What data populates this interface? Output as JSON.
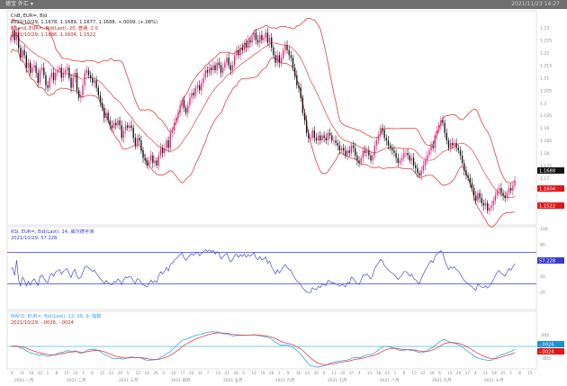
{
  "window": {
    "title": "德宝 外汇 ▾",
    "timestamp": "2021/11/23 14:27"
  },
  "colors": {
    "up": "#e0247b",
    "down": "#111111",
    "band": "#e04040",
    "rsi": "#4a4ad0",
    "macd": "#3aa0e8",
    "signal": "#e04040",
    "guide": "#3a3aff",
    "macd_guide": "#40c0e0"
  },
  "price_panel": {
    "header": "CnB, EUR=, Bid",
    "ohlc": "2021/10/29, 1.1678, 1.1689, 1.1677, 1.1688, +.0009, (+.08%)",
    "bb_label": "BBand, EUR=, Bid(Last), 20, 普通, 2.0",
    "bb_values": "2021/10/29, 1.1686, 1.1604, 1.1522",
    "price_tag": "1.1688",
    "band_tag_upper": "1.1604",
    "band_tag_lower": "1.1522",
    "y_ticks": [
      "1.23",
      "1.225",
      "1.22",
      "1.215",
      "1.21",
      "1.205",
      "1.2",
      "1.195",
      "1.19",
      "1.185",
      "1.18",
      "1.175",
      "1.17",
      "1.165",
      "1.16"
    ]
  },
  "rsi_panel": {
    "label": "RSI, EUR=, Bid(Last), 14, 威尔德平滑",
    "value_line": "2021/10/29, 57.228",
    "y_ticks": [
      "100",
      "80",
      "60",
      "40",
      "20"
    ],
    "value_tag": "57.228"
  },
  "macd_panel": {
    "label": "MACD, EUR=, Bid(Last), 12, 26, 9, 指数",
    "value_line": "2021/10/29, -.0026, -.0024",
    "y_ticks": [
      ".005",
      "0",
      "-.005"
    ],
    "tag_macd": "-.0026",
    "tag_signal": "-.0024"
  },
  "x_axis": {
    "day_ticks": [
      "4",
      "11",
      "18",
      "25",
      "1",
      "8",
      "15",
      "22",
      "1",
      "8",
      "15",
      "22",
      "29",
      "5",
      "12",
      "19",
      "26",
      "3",
      "10",
      "17",
      "24",
      "31",
      "7",
      "14",
      "21",
      "28",
      "5",
      "12",
      "19",
      "26",
      "2",
      "9",
      "16",
      "23",
      "30",
      "6",
      "13",
      "20",
      "27",
      "4",
      "11",
      "18",
      "25",
      "1",
      "8",
      "15",
      "22",
      "29",
      "6",
      "13",
      "20",
      "27",
      "4",
      "11",
      "18",
      "25",
      "1",
      "8",
      "15"
    ],
    "months": [
      "2021 一月",
      "2021 二月",
      "2021 三月",
      "2021 四月",
      "2021 五月",
      "2021 六月",
      "2021 七月",
      "2021 八月",
      "2021 九月",
      "2021 十月"
    ]
  },
  "chart_data": {
    "type": "candlestick",
    "period": "weekly-like daily candles, Jan–Oct 2021",
    "price_range": [
      1.152,
      1.236
    ],
    "close": [
      1.226,
      1.229,
      1.225,
      1.228,
      1.222,
      1.218,
      1.221,
      1.219,
      1.214,
      1.216,
      1.212,
      1.214,
      1.215,
      1.212,
      1.208,
      1.213,
      1.214,
      1.211,
      1.207,
      1.206,
      1.21,
      1.212,
      1.209,
      1.212,
      1.213,
      1.214,
      1.21,
      1.212,
      1.213,
      1.214,
      1.21,
      1.206,
      1.21,
      1.212,
      1.205,
      1.202,
      1.203,
      1.207,
      1.212,
      1.213,
      1.211,
      1.21,
      1.208,
      1.209,
      1.206,
      1.203,
      1.2,
      1.198,
      1.194,
      1.196,
      1.193,
      1.191,
      1.19,
      1.192,
      1.191,
      1.193,
      1.191,
      1.186,
      1.189,
      1.191,
      1.19,
      1.191,
      1.19,
      1.186,
      1.183,
      1.186,
      1.185,
      1.181,
      1.178,
      1.177,
      1.175,
      1.177,
      1.179,
      1.176,
      1.177,
      1.175,
      1.179,
      1.182,
      1.18,
      1.182,
      1.185,
      1.182,
      1.188,
      1.189,
      1.192,
      1.194,
      1.196,
      1.199,
      1.201,
      1.198,
      1.196,
      1.199,
      1.202,
      1.204,
      1.203,
      1.206,
      1.207,
      1.205,
      1.208,
      1.21,
      1.213,
      1.212,
      1.214,
      1.213,
      1.215,
      1.213,
      1.216,
      1.215,
      1.212,
      1.214,
      1.216,
      1.218,
      1.215,
      1.213,
      1.215,
      1.219,
      1.221,
      1.219,
      1.222,
      1.221,
      1.224,
      1.222,
      1.225,
      1.224,
      1.226,
      1.228,
      1.225,
      1.224,
      1.227,
      1.225,
      1.226,
      1.228,
      1.224,
      1.226,
      1.222,
      1.219,
      1.216,
      1.219,
      1.216,
      1.218,
      1.221,
      1.223,
      1.221,
      1.219,
      1.218,
      1.214,
      1.211,
      1.207,
      1.206,
      1.202,
      1.196,
      1.193,
      1.188,
      1.186,
      1.186,
      1.189,
      1.186,
      1.185,
      1.187,
      1.185,
      1.187,
      1.186,
      1.185,
      1.188,
      1.187,
      1.185,
      1.185,
      1.184,
      1.183,
      1.181,
      1.182,
      1.181,
      1.179,
      1.181,
      1.18,
      1.183,
      1.182,
      1.179,
      1.177,
      1.176,
      1.178,
      1.181,
      1.18,
      1.181,
      1.179,
      1.177,
      1.179,
      1.183,
      1.185,
      1.187,
      1.19,
      1.189,
      1.186,
      1.185,
      1.183,
      1.182,
      1.181,
      1.18,
      1.178,
      1.176,
      1.177,
      1.178,
      1.18,
      1.18,
      1.179,
      1.177,
      1.178,
      1.175,
      1.174,
      1.172,
      1.171,
      1.173,
      1.175,
      1.177,
      1.179,
      1.181,
      1.183,
      1.182,
      1.187,
      1.189,
      1.191,
      1.193,
      1.192,
      1.188,
      1.185,
      1.182,
      1.184,
      1.183,
      1.184,
      1.182,
      1.181,
      1.179,
      1.176,
      1.173,
      1.171,
      1.17,
      1.168,
      1.166,
      1.163,
      1.161,
      1.164,
      1.162,
      1.16,
      1.159,
      1.16,
      1.157,
      1.158,
      1.159,
      1.161,
      1.163,
      1.165,
      1.166,
      1.164,
      1.163,
      1.162,
      1.164,
      1.166,
      1.165,
      1.167,
      1.169
    ]
  }
}
